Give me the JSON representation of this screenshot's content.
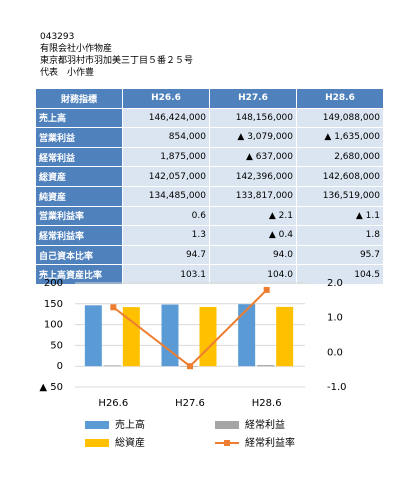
{
  "header": {
    "lines": [
      "043293",
      "有限会社小作物産",
      "東京都羽村市羽加美三丁目５番２５号",
      "代表　小作豊"
    ]
  },
  "table": {
    "columns": [
      "財務指標",
      "H26.6",
      "H27.6",
      "H28.6"
    ],
    "rows": [
      [
        "売上高",
        "146,424,000",
        "148,156,000",
        "149,088,000"
      ],
      [
        "営業利益",
        "854,000",
        "▲ 3,079,000",
        "▲ 1,635,000"
      ],
      [
        "経常利益",
        "1,875,000",
        "▲ 637,000",
        "2,680,000"
      ],
      [
        "総資産",
        "142,057,000",
        "142,396,000",
        "142,608,000"
      ],
      [
        "純資産",
        "134,485,000",
        "133,817,000",
        "136,519,000"
      ],
      [
        "営業利益率",
        "0.6",
        "▲ 2.1",
        "▲ 1.1"
      ],
      [
        "経常利益率",
        "1.3",
        "▲ 0.4",
        "1.8"
      ],
      [
        "自己資本比率",
        "94.7",
        "94.0",
        "95.7"
      ],
      [
        "売上高資産比率",
        "103.1",
        "104.0",
        "104.5"
      ]
    ]
  },
  "chart_data": {
    "type": "bar",
    "categories": [
      "H26.6",
      "H27.6",
      "H28.6"
    ],
    "series": [
      {
        "name": "売上高",
        "color": "#5b9bd5",
        "values": [
          146.4,
          148.2,
          149.1
        ]
      },
      {
        "name": "経常利益",
        "color": "#a5a5a5",
        "values": [
          1.9,
          -0.6,
          2.7
        ]
      },
      {
        "name": "総資産",
        "color": "#ffc000",
        "values": [
          142.1,
          142.4,
          142.6
        ]
      },
      {
        "name": "経常利益率",
        "color": "#ed7d31",
        "type": "line",
        "axis": "y2",
        "values": [
          1.3,
          -0.4,
          1.8
        ]
      }
    ],
    "ylim": [
      -50,
      200
    ],
    "yticks": [
      {
        "value": -50,
        "label": "▲ 50"
      },
      0,
      50,
      100,
      150,
      200
    ],
    "y2lim": [
      -1,
      2
    ],
    "y2ticks": [
      {
        "value": -1,
        "label": "-1.0"
      },
      {
        "value": 0,
        "label": "0.0"
      },
      {
        "value": 1,
        "label": "1.0"
      },
      {
        "value": 2,
        "label": "2.0"
      }
    ],
    "grid": true
  }
}
